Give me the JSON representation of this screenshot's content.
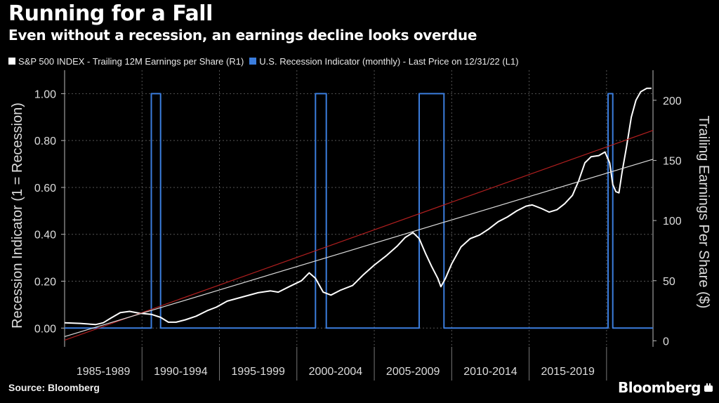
{
  "header": {
    "title": "Running for a Fall",
    "subtitle": "Even without a recession, an earnings decline looks overdue"
  },
  "legend": [
    {
      "label": "S&P 500 INDEX - Trailing 12M Earnings per Share (R1)",
      "color": "#ffffff"
    },
    {
      "label": "U.S. Recession Indicator (monthly) - Last Price on 12/31/22 (L1)",
      "color": "#3b7ddd"
    }
  ],
  "footer": {
    "source": "Source: Bloomberg",
    "brand": "Bloomberg"
  },
  "chart_data": {
    "type": "line",
    "grid": true,
    "x_categories": [
      "1985-1989",
      "1990-1994",
      "1995-1999",
      "2000-2004",
      "2005-2009",
      "2010-2014",
      "2015-2019"
    ],
    "xlim": [
      1985,
      2023
    ],
    "y_left": {
      "label": "Recession Indicator (1 = Recession)",
      "ylim": [
        -0.08,
        1.1
      ],
      "ticks": [
        0.0,
        0.2,
        0.4,
        0.6,
        0.8,
        1.0
      ],
      "tick_labels": [
        "0.00",
        "0.20",
        "0.40",
        "0.60",
        "0.80",
        "1.00"
      ]
    },
    "y_right": {
      "label": "Trailing Earnings Per Share ($)",
      "ylim": [
        -5,
        225
      ],
      "ticks": [
        0,
        50,
        100,
        150,
        200
      ],
      "tick_labels": [
        "0",
        "50",
        "100",
        "150",
        "200"
      ]
    },
    "series": [
      {
        "name": "U.S. Recession Indicator (monthly) - Last Price on 12/31/22 (L1)",
        "axis": "left",
        "color": "#3b7ddd",
        "step": true,
        "points": [
          [
            1985.0,
            0
          ],
          [
            1990.6,
            0
          ],
          [
            1990.6,
            1
          ],
          [
            1991.2,
            1
          ],
          [
            1991.2,
            0
          ],
          [
            2001.2,
            0
          ],
          [
            2001.2,
            1
          ],
          [
            2001.9,
            1
          ],
          [
            2001.9,
            0
          ],
          [
            2007.9,
            0
          ],
          [
            2007.9,
            1
          ],
          [
            2009.5,
            1
          ],
          [
            2009.5,
            0
          ],
          [
            2020.1,
            0
          ],
          [
            2020.1,
            1
          ],
          [
            2020.4,
            1
          ],
          [
            2020.4,
            0
          ],
          [
            2023.0,
            0
          ]
        ]
      },
      {
        "name": "S&P 500 INDEX - Trailing 12M Earnings per Share (R1)",
        "axis": "right",
        "color": "#ffffff",
        "points": [
          [
            1985.0,
            15.0
          ],
          [
            1986.0,
            14.5
          ],
          [
            1987.0,
            13.5
          ],
          [
            1987.5,
            15.0
          ],
          [
            1988.0,
            19.0
          ],
          [
            1988.6,
            23.5
          ],
          [
            1989.2,
            24.5
          ],
          [
            1989.8,
            23.0
          ],
          [
            1990.6,
            22.0
          ],
          [
            1991.2,
            19.5
          ],
          [
            1991.7,
            15.5
          ],
          [
            1992.2,
            15.5
          ],
          [
            1992.8,
            17.5
          ],
          [
            1993.5,
            20.5
          ],
          [
            1994.2,
            25.0
          ],
          [
            1994.8,
            28.0
          ],
          [
            1995.5,
            33.0
          ],
          [
            1996.5,
            36.5
          ],
          [
            1997.5,
            40.0
          ],
          [
            1998.3,
            41.5
          ],
          [
            1998.8,
            40.5
          ],
          [
            1999.5,
            45.0
          ],
          [
            2000.3,
            50.0
          ],
          [
            2000.8,
            56.5
          ],
          [
            2001.2,
            52.0
          ],
          [
            2001.7,
            40.5
          ],
          [
            2002.2,
            38.0
          ],
          [
            2002.8,
            42.0
          ],
          [
            2003.6,
            46.0
          ],
          [
            2004.3,
            55.0
          ],
          [
            2005.0,
            63.0
          ],
          [
            2005.8,
            71.0
          ],
          [
            2006.5,
            79.0
          ],
          [
            2007.0,
            86.0
          ],
          [
            2007.5,
            90.0
          ],
          [
            2007.9,
            85.0
          ],
          [
            2008.3,
            73.0
          ],
          [
            2008.7,
            62.0
          ],
          [
            2009.1,
            52.0
          ],
          [
            2009.3,
            45.0
          ],
          [
            2009.6,
            52.0
          ],
          [
            2010.0,
            64.0
          ],
          [
            2010.6,
            78.0
          ],
          [
            2011.2,
            85.0
          ],
          [
            2011.8,
            88.0
          ],
          [
            2012.4,
            93.0
          ],
          [
            2013.0,
            99.0
          ],
          [
            2013.6,
            103.0
          ],
          [
            2014.2,
            108.0
          ],
          [
            2014.8,
            112.0
          ],
          [
            2015.2,
            113.0
          ],
          [
            2015.8,
            110.0
          ],
          [
            2016.3,
            107.0
          ],
          [
            2016.8,
            109.0
          ],
          [
            2017.3,
            114.0
          ],
          [
            2017.8,
            121.0
          ],
          [
            2018.2,
            133.0
          ],
          [
            2018.6,
            148.0
          ],
          [
            2019.0,
            153.0
          ],
          [
            2019.5,
            154.0
          ],
          [
            2019.9,
            157.0
          ],
          [
            2020.2,
            148.0
          ],
          [
            2020.4,
            130.0
          ],
          [
            2020.6,
            124.0
          ],
          [
            2020.8,
            123.0
          ],
          [
            2021.0,
            140.0
          ],
          [
            2021.3,
            162.0
          ],
          [
            2021.6,
            186.0
          ],
          [
            2021.9,
            200.0
          ],
          [
            2022.2,
            207.0
          ],
          [
            2022.6,
            210.0
          ],
          [
            2022.9,
            210.0
          ]
        ]
      },
      {
        "name": "",
        "axis": "right",
        "color": "#b11f1f",
        "trend": true,
        "points": [
          [
            1985.0,
            0.5
          ],
          [
            2023.0,
            175.0
          ]
        ]
      },
      {
        "name": "",
        "axis": "right",
        "color": "#dcdcdc",
        "trend": true,
        "points": [
          [
            1985.0,
            3.5
          ],
          [
            2023.0,
            151.0
          ]
        ]
      }
    ]
  }
}
